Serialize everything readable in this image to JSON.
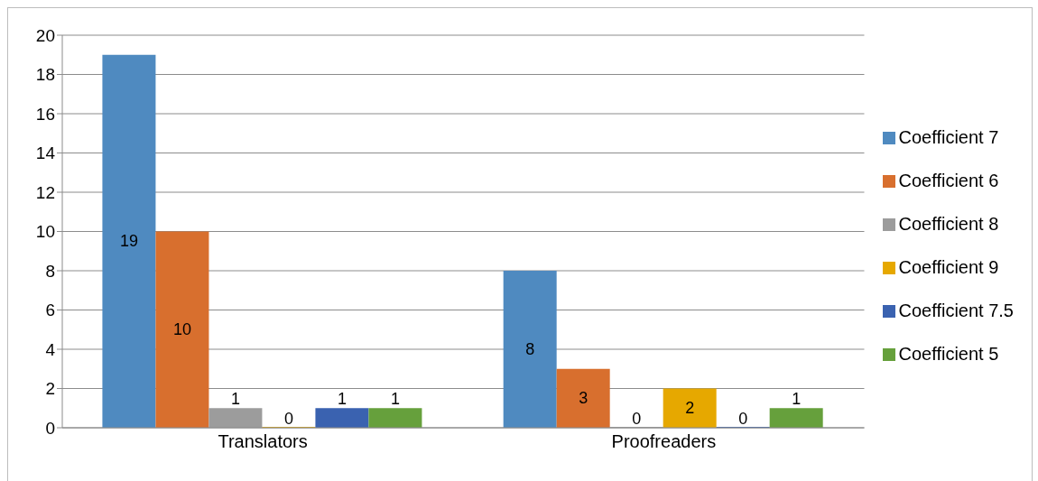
{
  "chart_data": {
    "type": "bar",
    "categories": [
      "Translators",
      "Proofreaders"
    ],
    "series": [
      {
        "name": "Coefficient 7",
        "color": "#4f8ac0",
        "values": [
          19,
          8
        ]
      },
      {
        "name": "Coefficient 6",
        "color": "#d86f2e",
        "values": [
          10,
          3
        ]
      },
      {
        "name": "Coefficient 8",
        "color": "#9c9c9c",
        "values": [
          1,
          0
        ]
      },
      {
        "name": "Coefficient 9",
        "color": "#e6a800",
        "values": [
          0,
          2
        ]
      },
      {
        "name": "Coefficient 7.5",
        "color": "#3a62b0",
        "values": [
          1,
          0
        ]
      },
      {
        "name": "Coefficient 5",
        "color": "#66a03c",
        "values": [
          1,
          1
        ]
      }
    ],
    "ylim": [
      0,
      20
    ],
    "yticks": [
      0,
      2,
      4,
      6,
      8,
      10,
      12,
      14,
      16,
      18,
      20
    ],
    "grid": "y",
    "legend": "right",
    "data_labels": true
  }
}
